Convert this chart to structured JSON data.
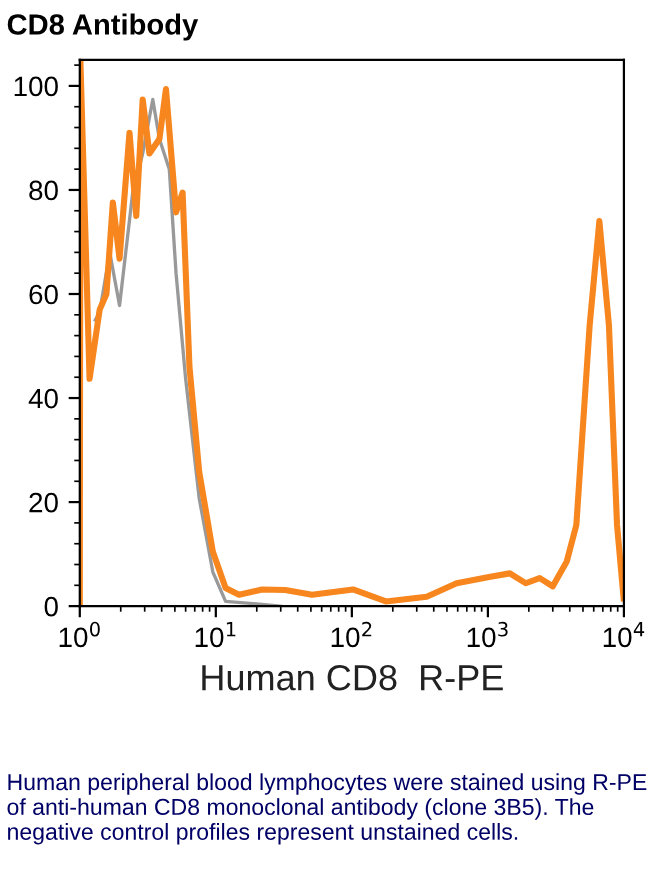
{
  "chart_data": {
    "type": "line",
    "title": "CD8 Antibody",
    "xlabel": "Human CD8  R-PE",
    "annotations": [
      "Human peripheral blood lymphocytes were stained using R-PE of anti-human CD8 monoclonal antibody (clone 3B5). The negative control profiles represent unstained cells."
    ],
    "log": "x",
    "xlim": [
      1,
      10000
    ],
    "ylim": [
      0,
      105
    ],
    "xticks": [
      {
        "value": 1,
        "label": "10$^{0}$"
      },
      {
        "value": 10,
        "label": "10$^{1}$"
      },
      {
        "value": 100,
        "label": "10$^{2}$"
      },
      {
        "value": 1000,
        "label": "10$^{3}$"
      },
      {
        "value": 10000,
        "label": "10$^{4}$"
      }
    ],
    "yticks": [
      0,
      20,
      40,
      60,
      80,
      100
    ],
    "grid": false,
    "legend": false,
    "marker": "none",
    "line_style": "solid",
    "series": [
      {
        "color": "#999999",
        "x": [
          1.3,
          1.4,
          1.66,
          1.96,
          2.45,
          2.9,
          3.44,
          3.85,
          4.55,
          5.1,
          6.0,
          7.55,
          9.5,
          11.8,
          23,
          30
        ],
        "values": [
          55,
          56.5,
          68,
          57.8,
          79.5,
          87,
          97.4,
          89.8,
          84,
          64,
          43.7,
          20.7,
          6.6,
          0.9,
          0.3,
          0
        ]
      },
      {
        "color": "#f7861e",
        "x": [
          1,
          1.01,
          1.18,
          1.4,
          1.57,
          1.75,
          1.96,
          2.32,
          2.6,
          2.9,
          3.25,
          3.85,
          4.3,
          5.1,
          5.7,
          6.4,
          7.55,
          9.5,
          11.8,
          14.8,
          21.9,
          32.4,
          51,
          102,
          178,
          355,
          589,
          1020,
          1450,
          1900,
          2400,
          3000,
          3800,
          4470,
          5600,
          6600,
          7760,
          8900,
          9950
        ],
        "values": [
          0,
          105,
          43.7,
          57,
          60,
          77.6,
          66.8,
          91,
          75,
          97.4,
          87,
          89.8,
          99.4,
          75.7,
          79.5,
          46,
          25.8,
          10.5,
          3.5,
          2.2,
          3.2,
          3.1,
          2.2,
          3.2,
          0.9,
          1.8,
          4.4,
          5.6,
          6.3,
          4.4,
          5.4,
          3.8,
          8.6,
          15.6,
          54,
          74,
          54,
          15.6,
          1.5
        ]
      }
    ]
  }
}
